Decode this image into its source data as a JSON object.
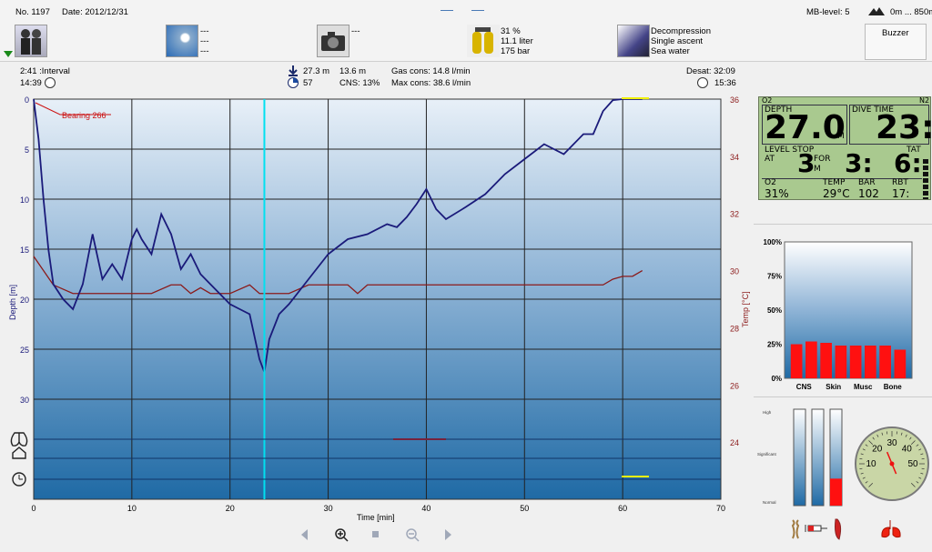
{
  "header": {
    "dive_no": "No. 1197",
    "date": "Date: 2012/12/31",
    "mb_level": "MB-level: 5",
    "altitude": "0m ... 850m",
    "buzzer": "Buzzer",
    "buddy_icon": "divers-icon",
    "weather_lines": [
      "---",
      "---",
      "---"
    ],
    "camera_lines": [
      "---"
    ],
    "tank_lines": [
      "31 %",
      "11.1 liter",
      "175 bar"
    ],
    "dive_type_lines": [
      "Decompression",
      "Single ascent",
      "Sea water"
    ]
  },
  "infobar": {
    "interval": "2:41 :Interval",
    "time_of_day": "14:39",
    "max_depth": "27.3 m",
    "avg_depth": "13.6 m",
    "gas_cons": "Gas cons: 14.8 l/min",
    "cns_dial": "57",
    "cns": "CNS:  13%",
    "max_cons": "Max cons: 38.6 l/min",
    "desat": "Desat: 32:09",
    "end_time": "15:36"
  },
  "chart_data": {
    "type": "line",
    "xlabel": "Time [min]",
    "ylabel": "Depth [m]",
    "y2label": "Temp [°C]",
    "xlim": [
      0,
      70
    ],
    "ylim": [
      0,
      40
    ],
    "y2lim": [
      22,
      36
    ],
    "xticks": [
      0,
      10,
      20,
      30,
      40,
      50,
      60,
      70
    ],
    "yticks": [
      0,
      5,
      10,
      15,
      20,
      25,
      30
    ],
    "y2ticks": [
      36,
      34,
      32,
      30,
      28,
      26,
      24
    ],
    "grid": true,
    "annotation": "Bearing 266",
    "cursor_time": 23.5,
    "depth": {
      "x": [
        0,
        0.5,
        1,
        1.5,
        2,
        3,
        4,
        5,
        6,
        7,
        8,
        9,
        10,
        10.5,
        11,
        12,
        13,
        14,
        15,
        16,
        17,
        18,
        19,
        20,
        21,
        22,
        23,
        23.5,
        24,
        25,
        26,
        28,
        30,
        32,
        34,
        36,
        37,
        38,
        39,
        40,
        41,
        42,
        44,
        46,
        48,
        50,
        52,
        54,
        56,
        57,
        58,
        59,
        60,
        62
      ],
      "y": [
        0,
        4,
        10,
        15,
        18.5,
        20,
        21,
        18.5,
        13.5,
        18,
        16.5,
        18,
        14,
        13,
        14,
        15.5,
        11.5,
        13.5,
        17,
        15.5,
        17.5,
        18.5,
        19.5,
        20.5,
        21,
        21.5,
        26,
        27.3,
        24,
        21.5,
        20.5,
        18,
        15.5,
        14,
        13.5,
        12.5,
        12.8,
        11.8,
        10.5,
        9,
        11,
        12,
        10.8,
        9.5,
        7.5,
        6,
        4.5,
        5.5,
        3.5,
        3.5,
        1.2,
        0.1,
        0,
        0
      ]
    },
    "temperature": {
      "x": [
        0,
        2,
        4,
        8,
        12,
        14,
        15,
        16,
        17,
        18,
        20,
        22,
        23,
        24,
        26,
        28,
        30,
        32,
        33,
        34,
        36,
        38,
        40,
        50,
        58,
        59,
        60,
        61,
        62
      ],
      "y": [
        30.5,
        29.5,
        29.2,
        29.2,
        29.2,
        29.5,
        29.5,
        29.2,
        29.4,
        29.2,
        29.2,
        29.5,
        29.2,
        29.2,
        29.2,
        29.5,
        29.5,
        29.5,
        29.2,
        29.5,
        29.5,
        29.5,
        29.5,
        29.5,
        29.5,
        29.7,
        29.8,
        29.8,
        30.0
      ]
    }
  },
  "computer": {
    "o2_corner": "O2",
    "n2_corner": "N2",
    "depth_label": "DEPTH",
    "depth_value": "27.0",
    "depth_unit": "M",
    "dive_time_label": "DIVE TIME",
    "dive_time_value": "23:",
    "level_stop_label": "LEVEL STOP",
    "at_label": "AT",
    "at_value": "3",
    "for_label": "FOR",
    "m_label": "M",
    "for_value": "3:",
    "tat_label": "TAT",
    "tat_value": "6:",
    "o2_label": "O2",
    "o2_value": "31%",
    "temp_label": "TEMP",
    "temp_value": "29°C",
    "bar_label": "BAR",
    "bar_value": "102",
    "rbt_label": "RBT",
    "rbt_value": "17:"
  },
  "tissue_chart": {
    "ylabels": [
      "100%",
      "75%",
      "50%",
      "25%",
      "0%"
    ],
    "categories": [
      "CNS",
      "Skin",
      "Musc",
      "Bone"
    ],
    "values": [
      25,
      27,
      26,
      24,
      24,
      24,
      24,
      21
    ]
  },
  "micro_bubble": {
    "labels": [
      "High",
      "Significant",
      "Normal"
    ],
    "levels": [
      0,
      0,
      0.28
    ]
  },
  "gauge": {
    "ticks": [
      "10",
      "20",
      "30",
      "40",
      "50"
    ],
    "value": 25
  },
  "colors": {
    "depth_line": "#1a1a7a",
    "temp_line": "#8b1a1a",
    "cursor": "#00e0f0",
    "lcd_bg": "#a9c98f",
    "bar_red": "#ff1010"
  }
}
